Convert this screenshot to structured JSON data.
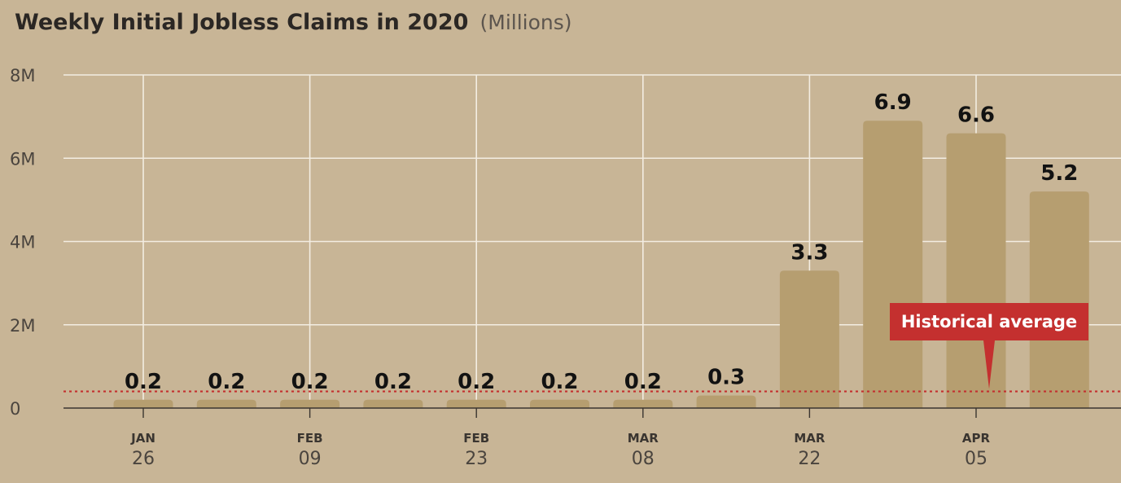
{
  "chart_data": {
    "type": "bar",
    "title": "Weekly Initial Jobless Claims in 2020",
    "subtitle": "(Millions)",
    "y_ticks": [
      "0",
      "2M",
      "4M",
      "6M",
      "8M"
    ],
    "ylim": [
      0,
      8
    ],
    "grid": true,
    "values": [
      0.2,
      0.2,
      0.2,
      0.2,
      0.2,
      0.2,
      0.2,
      0.3,
      3.3,
      6.9,
      6.6,
      5.2
    ],
    "data_labels": [
      "0.2",
      "0.2",
      "0.2",
      "0.2",
      "0.2",
      "0.2",
      "0.2",
      "0.3",
      "3.3",
      "6.9",
      "6.6",
      "5.2"
    ],
    "x_tick_labels": [
      {
        "month": "JAN",
        "day": "26",
        "bar_index": 0
      },
      {
        "month": "FEB",
        "day": "09",
        "bar_index": 2
      },
      {
        "month": "MAR",
        "day": "08",
        "bar_index": 6
      },
      {
        "month": "FEB",
        "day": "23",
        "bar_index": 4
      },
      {
        "month": "MAR",
        "day": "22",
        "bar_index": 8
      },
      {
        "month": "APR",
        "day": "05",
        "bar_index": 10
      }
    ],
    "reference_line": {
      "label": "Historical average",
      "value": 0.4,
      "pointer_bar_index": 10
    },
    "colors": {
      "bar": "#b69e70",
      "background": "#c8b596",
      "grid": "#f3ede2",
      "reference": "#c4302f"
    }
  }
}
